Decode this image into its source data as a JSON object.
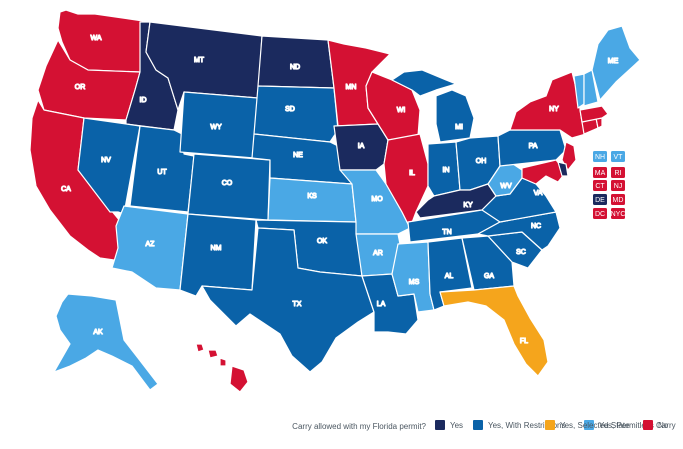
{
  "colors": {
    "yes": "#1b2a5e",
    "yes_restrictions": "#0a62a8",
    "permitless": "#4aa8e5",
    "selected": "#f5a51c",
    "no": "#d41133"
  },
  "states": {
    "WA": "WA",
    "OR": "OR",
    "CA": "CA",
    "ID": "ID",
    "NV": "NV",
    "MT": "MT",
    "WY": "WY",
    "UT": "UT",
    "AZ": "AZ",
    "CO": "CO",
    "NM": "NM",
    "ND": "ND",
    "SD": "SD",
    "NE": "NE",
    "KS": "KS",
    "OK": "OK",
    "TX": "TX",
    "MN": "MN",
    "IA": "IA",
    "MO": "MO",
    "AR": "AR",
    "LA": "LA",
    "WI": "WI",
    "IL": "IL",
    "MS": "MS",
    "MI": "MI",
    "IN": "IN",
    "KY": "KY",
    "TN": "TN",
    "AL": "AL",
    "OH": "OH",
    "GA": "GA",
    "FL": "FL",
    "SC": "SC",
    "NC": "NC",
    "VA": "VA",
    "WV": "WV",
    "PA": "PA",
    "NY": "NY",
    "ME": "ME",
    "AK": "AK",
    "HI": "HI"
  },
  "small_states": [
    {
      "label": "NH",
      "status": "permitless"
    },
    {
      "label": "VT",
      "status": "permitless"
    },
    {
      "label": "MA",
      "status": "no"
    },
    {
      "label": "RI",
      "status": "no"
    },
    {
      "label": "CT",
      "status": "no"
    },
    {
      "label": "NJ",
      "status": "no"
    },
    {
      "label": "DE",
      "status": "yes"
    },
    {
      "label": "MD",
      "status": "no"
    },
    {
      "label": "DC",
      "status": "no"
    },
    {
      "label": "NYC",
      "status": "no"
    }
  ],
  "legend": {
    "question": "Carry allowed with my Florida permit?",
    "items": [
      {
        "label": "Yes",
        "status": "yes"
      },
      {
        "label": "Yes, With Restrictions",
        "status": "yes_restrictions"
      },
      {
        "label": "Yes, Permitless Carry",
        "status": "permitless"
      },
      {
        "label": "Yes, Selected State",
        "status": "selected"
      },
      {
        "label": "No",
        "status": "no"
      }
    ]
  }
}
